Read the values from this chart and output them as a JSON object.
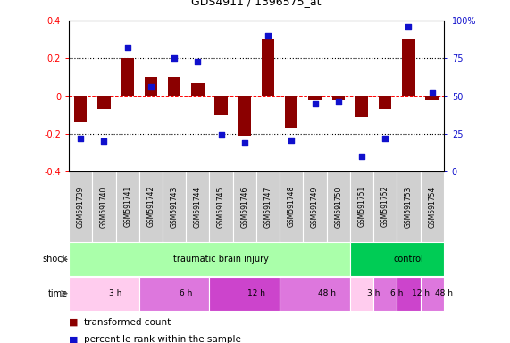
{
  "title": "GDS4911 / 1396575_at",
  "samples": [
    "GSM591739",
    "GSM591740",
    "GSM591741",
    "GSM591742",
    "GSM591743",
    "GSM591744",
    "GSM591745",
    "GSM591746",
    "GSM591747",
    "GSM591748",
    "GSM591749",
    "GSM591750",
    "GSM591751",
    "GSM591752",
    "GSM591753",
    "GSM591754"
  ],
  "red_values": [
    -0.14,
    -0.07,
    0.2,
    0.1,
    0.1,
    0.07,
    -0.1,
    -0.21,
    0.3,
    -0.17,
    -0.02,
    -0.02,
    -0.11,
    -0.07,
    0.3,
    -0.02
  ],
  "blue_pct": [
    22,
    20,
    82,
    56,
    75,
    73,
    24,
    19,
    90,
    21,
    45,
    46,
    10,
    22,
    96,
    52
  ],
  "red_color": "#8B0000",
  "blue_color": "#1010CC",
  "ylim_left": [
    -0.4,
    0.4
  ],
  "ylim_right": [
    0,
    100
  ],
  "shock_groups": [
    {
      "label": "traumatic brain injury",
      "start": 0,
      "end": 12,
      "color": "#AAFFAA"
    },
    {
      "label": "control",
      "start": 12,
      "end": 16,
      "color": "#00CC55"
    }
  ],
  "time_groups": [
    {
      "label": "3 h",
      "start": 0,
      "end": 3,
      "color": "#FFCCEE"
    },
    {
      "label": "6 h",
      "start": 3,
      "end": 6,
      "color": "#DD77DD"
    },
    {
      "label": "12 h",
      "start": 6,
      "end": 9,
      "color": "#CC44CC"
    },
    {
      "label": "48 h",
      "start": 9,
      "end": 12,
      "color": "#DD77DD"
    },
    {
      "label": "3 h",
      "start": 12,
      "end": 13,
      "color": "#FFCCEE"
    },
    {
      "label": "6 h",
      "start": 13,
      "end": 14,
      "color": "#DD77DD"
    },
    {
      "label": "12 h",
      "start": 14,
      "end": 15,
      "color": "#CC44CC"
    },
    {
      "label": "48 h",
      "start": 15,
      "end": 16,
      "color": "#DD77DD"
    }
  ],
  "legend_red": "transformed count",
  "legend_blue": "percentile rank within the sample"
}
